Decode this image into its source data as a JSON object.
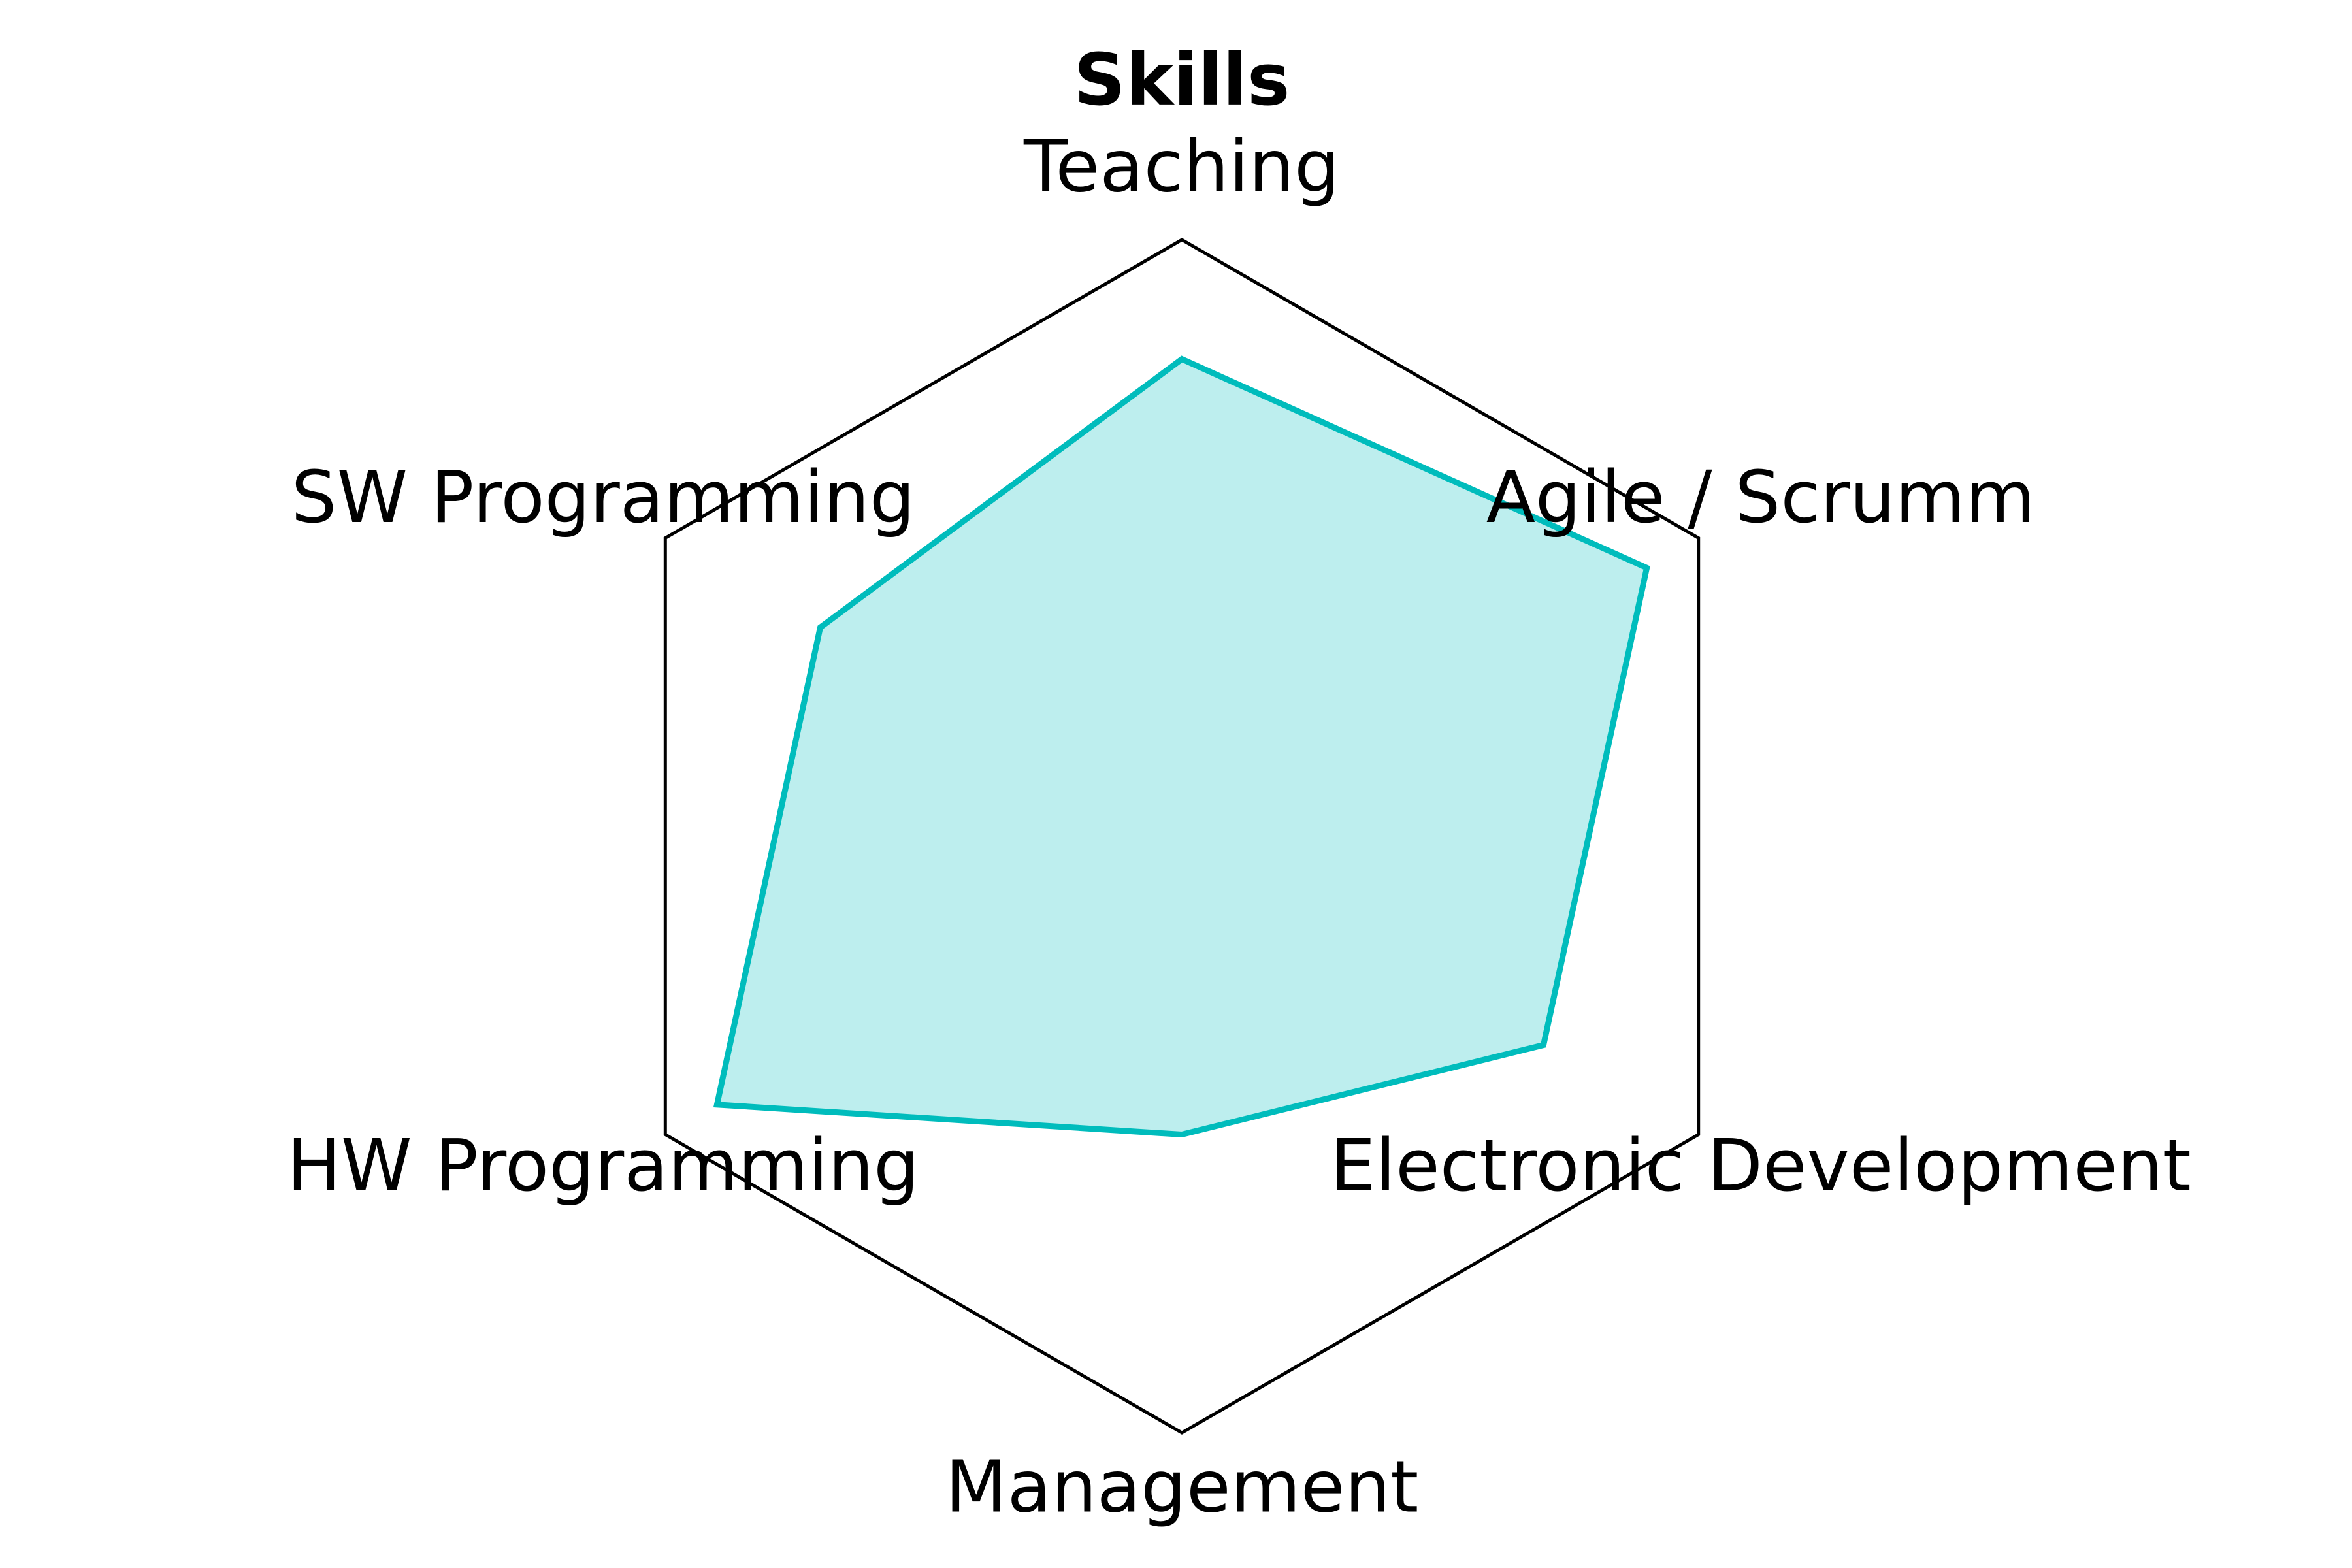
{
  "chart_data": {
    "type": "radar",
    "title": "Skills",
    "categories": [
      "Teaching",
      "Agile / Scrumm",
      "Electronic Development",
      "Management",
      "HW Programming",
      "SW Programming"
    ],
    "series": [
      {
        "values": [
          8,
          9,
          7,
          5,
          9,
          7
        ]
      }
    ],
    "range": [
      0,
      10
    ],
    "grid": false,
    "colors": {
      "line": "#00bcbc",
      "fill": "#bdeeee",
      "frame": "#000000"
    }
  }
}
